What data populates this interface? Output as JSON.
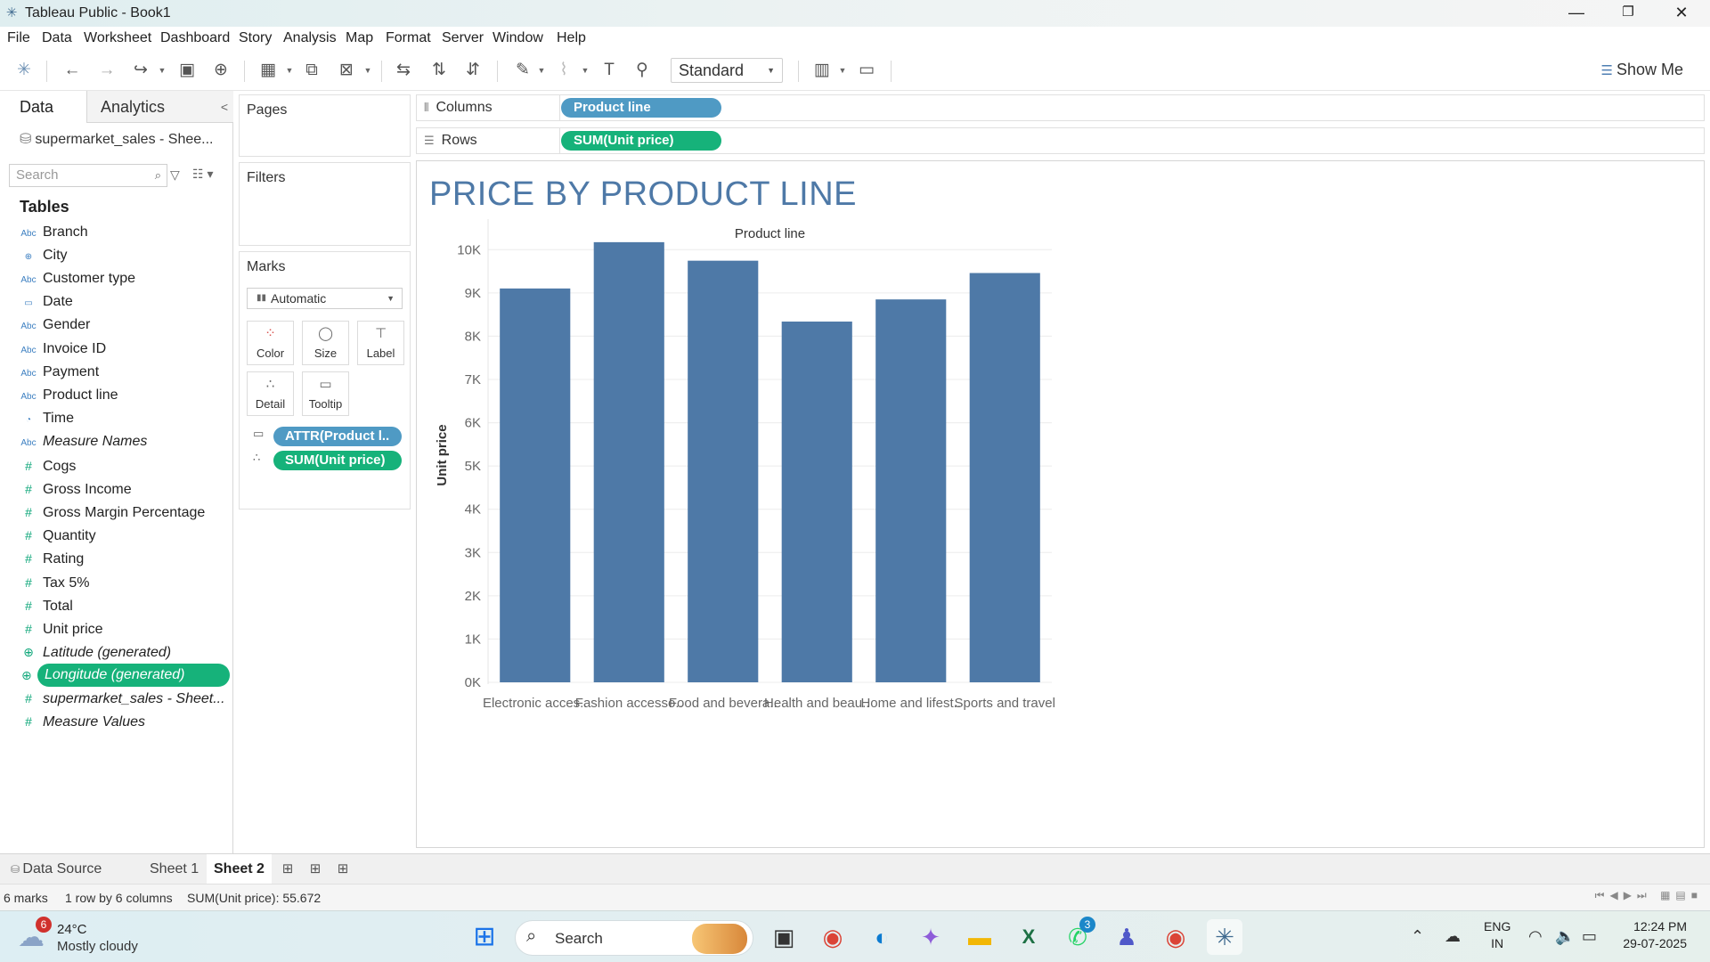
{
  "window": {
    "title": "Tableau Public - Book1",
    "minimize": "—",
    "restore": "❐",
    "close": "✕"
  },
  "menu": [
    "File",
    "Data",
    "Worksheet",
    "Dashboard",
    "Story",
    "Analysis",
    "Map",
    "Format",
    "Server",
    "Window",
    "Help"
  ],
  "toolbar": {
    "fit": "Standard",
    "show_me": "Show Me"
  },
  "data_pane": {
    "tab_data": "Data",
    "tab_analytics": "Analytics",
    "datasource": "supermarket_sales - Shee...",
    "search_placeholder": "Search",
    "tables_heading": "Tables",
    "fields": [
      {
        "label": "Branch",
        "kind": "dim",
        "icon": "Abc"
      },
      {
        "label": "City",
        "kind": "dim",
        "icon": "⊕"
      },
      {
        "label": "Customer type",
        "kind": "dim",
        "icon": "Abc"
      },
      {
        "label": "Date",
        "kind": "dim",
        "icon": "▭"
      },
      {
        "label": "Gender",
        "kind": "dim",
        "icon": "Abc"
      },
      {
        "label": "Invoice ID",
        "kind": "dim",
        "icon": "Abc"
      },
      {
        "label": "Payment",
        "kind": "dim",
        "icon": "Abc"
      },
      {
        "label": "Product line",
        "kind": "dim",
        "icon": "Abc"
      },
      {
        "label": "Time",
        "kind": "dim",
        "icon": "◔"
      },
      {
        "label": "Measure Names",
        "kind": "dim",
        "icon": "Abc",
        "italic": true
      },
      {
        "label": "Cogs",
        "kind": "mea",
        "icon": "#"
      },
      {
        "label": "Gross Income",
        "kind": "mea",
        "icon": "#"
      },
      {
        "label": "Gross Margin Percentage",
        "kind": "mea",
        "icon": "#"
      },
      {
        "label": "Quantity",
        "kind": "mea",
        "icon": "#"
      },
      {
        "label": "Rating",
        "kind": "mea",
        "icon": "#"
      },
      {
        "label": "Tax 5%",
        "kind": "mea",
        "icon": "#"
      },
      {
        "label": "Total",
        "kind": "mea",
        "icon": "#"
      },
      {
        "label": "Unit price",
        "kind": "mea",
        "icon": "#"
      },
      {
        "label": "Latitude (generated)",
        "kind": "mea",
        "icon": "⊕",
        "italic": true
      },
      {
        "label": "Longitude (generated)",
        "kind": "mea",
        "icon": "⊕",
        "italic": true,
        "selected": true
      },
      {
        "label": "supermarket_sales - Sheet...",
        "kind": "mea",
        "icon": "#",
        "italic": true
      },
      {
        "label": "Measure Values",
        "kind": "mea",
        "icon": "#",
        "italic": true
      }
    ]
  },
  "cards": {
    "pages": "Pages",
    "filters": "Filters",
    "marks": "Marks",
    "mark_type": "Automatic",
    "buttons": {
      "color": "Color",
      "size": "Size",
      "label": "Label",
      "detail": "Detail",
      "tooltip": "Tooltip"
    },
    "pill_tooltip": "ATTR(Product l..",
    "pill_detail": "SUM(Unit price)"
  },
  "shelves": {
    "columns_label": "Columns",
    "columns_pill": "Product line",
    "rows_label": "Rows",
    "rows_pill": "SUM(Unit price)"
  },
  "view": {
    "title": "PRICE BY PRODUCT LINE"
  },
  "chart_data": {
    "type": "bar",
    "title": "PRICE BY PRODUCT LINE",
    "header": "Product line",
    "xlabel": "",
    "ylabel": "Unit price",
    "categories": [
      "Electronic acces..",
      "Fashion accesso..",
      "Food and bevera..",
      "Health and beau..",
      "Home and lifest..",
      "Sports and travel"
    ],
    "values": [
      9103,
      10173,
      9745,
      8338,
      8850,
      9460
    ],
    "ylim": [
      0,
      10500
    ],
    "yticks": [
      0,
      1000,
      2000,
      3000,
      4000,
      5000,
      6000,
      7000,
      8000,
      9000,
      10000
    ],
    "ytick_labels": [
      "0K",
      "1K",
      "2K",
      "3K",
      "4K",
      "5K",
      "6K",
      "7K",
      "8K",
      "9K",
      "10K"
    ],
    "grid": true,
    "bar_color": "#4e79a7"
  },
  "sheet_tabs": {
    "data_source": "Data Source",
    "sheet1": "Sheet 1",
    "sheet2": "Sheet 2"
  },
  "status": {
    "marks": "6 marks",
    "dims": "1 row by 6 columns",
    "sum": "SUM(Unit price): 55.672"
  },
  "taskbar": {
    "weather_badge": "6",
    "temperature": "24°C",
    "condition": "Mostly cloudy",
    "search": "Search",
    "teams_badge": "3",
    "lang_top": "ENG",
    "lang_bottom": "IN",
    "time": "12:24 PM",
    "date": "29-07-2025"
  }
}
